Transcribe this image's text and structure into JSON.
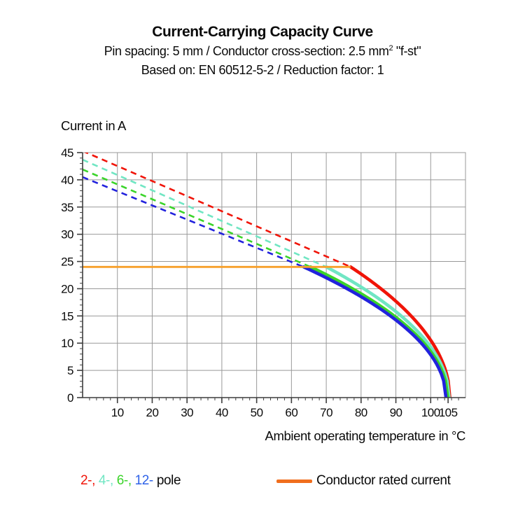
{
  "header": {
    "title": "Current-Carrying Capacity Curve",
    "subtitle_spec": {
      "text": "Pin spacing: 5 mm / Conductor cross-section: 2.5 mm",
      "sup": "2",
      "suffix": " \"f-st\""
    },
    "subtitle_standard": "Based on: EN 60512-5-2 / Reduction factor: 1"
  },
  "chart_data": {
    "type": "line",
    "title": "Current-Carrying Capacity Curve",
    "ylabel": "Current in A",
    "xlabel": "Ambient operating temperature in °C",
    "xlim": [
      0,
      110
    ],
    "ylim": [
      0,
      45
    ],
    "x_ticks": [
      10,
      20,
      30,
      40,
      50,
      60,
      70,
      80,
      90,
      100,
      105
    ],
    "x_gridlines": [
      10,
      20,
      30,
      40,
      50,
      60,
      70,
      80,
      90,
      100
    ],
    "y_ticks": [
      0,
      5,
      10,
      15,
      20,
      25,
      30,
      35,
      40,
      45
    ],
    "x_minor_step": 2,
    "y_minor_step": 1,
    "grid": true,
    "grid_color": "#999999",
    "axis_color": "#3d3d3d",
    "rated_current": {
      "label": "Conductor rated current",
      "value_a": 24,
      "t_start_c": 0,
      "t_end_c": 77,
      "color": "#f7a02b"
    },
    "series": [
      {
        "name": "2-pole",
        "poles": 2,
        "color": "#f01408",
        "i_at_0c_a": 45.3,
        "t_at_rated_c": 77,
        "t_at_zero_a_c": 105.5
      },
      {
        "name": "4-pole",
        "poles": 4,
        "color": "#70e6c3",
        "i_at_0c_a": 43.7,
        "t_at_rated_c": 70,
        "t_at_zero_a_c": 105.3
      },
      {
        "name": "6-pole",
        "poles": 6,
        "color": "#3bd42a",
        "i_at_0c_a": 41.9,
        "t_at_rated_c": 65.5,
        "t_at_zero_a_c": 104.9
      },
      {
        "name": "12-pole",
        "poles": 12,
        "color": "#2222dd",
        "i_at_0c_a": 40.5,
        "t_at_rated_c": 63.5,
        "t_at_zero_a_c": 104.4
      }
    ],
    "line_styles": {
      "above_rated": "dashed",
      "below_rated": "solid"
    }
  },
  "legend": {
    "pole_items": [
      {
        "label": "2-",
        "color": "#f01408"
      },
      {
        "label": "4-",
        "color": "#70e6c3"
      },
      {
        "label": "6-",
        "color": "#3bd42a"
      },
      {
        "label": "12-",
        "color": "#2e62e8"
      }
    ],
    "separator": ", ",
    "suffix": "pole",
    "rated": {
      "label": "Conductor rated current",
      "color": "#f06e1e"
    }
  }
}
